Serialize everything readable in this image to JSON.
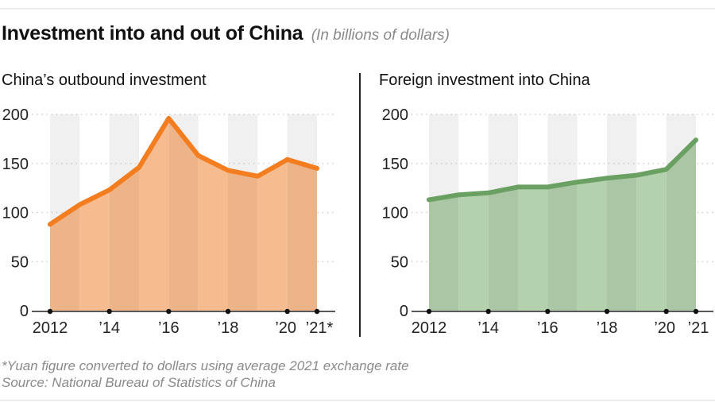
{
  "header": {
    "title": "Investment into and out of China",
    "subtitle": "(In billions of dollars)"
  },
  "footer": {
    "note": "*Yuan figure converted to dollars using average 2021 exchange rate",
    "source": "Source: National Bureau of Statistics of China"
  },
  "colors": {
    "outbound_line": "#F47D20",
    "outbound_fill": "#F6BB8E",
    "outbound_fill_alt": "#EDB48A",
    "inbound_line": "#6AA062",
    "inbound_fill": "#B4D1AE",
    "inbound_fill_alt": "#ABC6A4",
    "band": "#F0F0F0",
    "grid": "#BBBBBB"
  },
  "chart_data": [
    {
      "type": "area",
      "title": "China’s outbound investment",
      "xlabel": "",
      "ylabel": "",
      "x": [
        2012,
        2013,
        2014,
        2015,
        2016,
        2017,
        2018,
        2019,
        2020,
        2021
      ],
      "values": [
        88,
        108,
        123,
        146,
        196,
        158,
        143,
        137,
        154,
        145
      ],
      "ylim": [
        0,
        200
      ],
      "yticks": [
        0,
        50,
        100,
        150,
        200
      ],
      "xtick_positions": [
        2012,
        2014,
        2016,
        2018,
        2020,
        2021
      ],
      "xtick_labels": [
        "2012",
        "’14",
        "’16",
        "’18",
        "’20",
        "’21*"
      ],
      "grid": "horizontal dotted",
      "alternating_bands": true
    },
    {
      "type": "area",
      "title": "Foreign investment into China",
      "xlabel": "",
      "ylabel": "",
      "x": [
        2012,
        2013,
        2014,
        2015,
        2016,
        2017,
        2018,
        2019,
        2020,
        2021
      ],
      "values": [
        113,
        118,
        120,
        126,
        126,
        131,
        135,
        138,
        144,
        174
      ],
      "ylim": [
        0,
        200
      ],
      "yticks": [
        0,
        50,
        100,
        150,
        200
      ],
      "xtick_positions": [
        2012,
        2014,
        2016,
        2018,
        2020,
        2021
      ],
      "xtick_labels": [
        "2012",
        "’14",
        "’16",
        "’18",
        "’20",
        "’21"
      ],
      "grid": "horizontal dotted",
      "alternating_bands": true
    }
  ]
}
